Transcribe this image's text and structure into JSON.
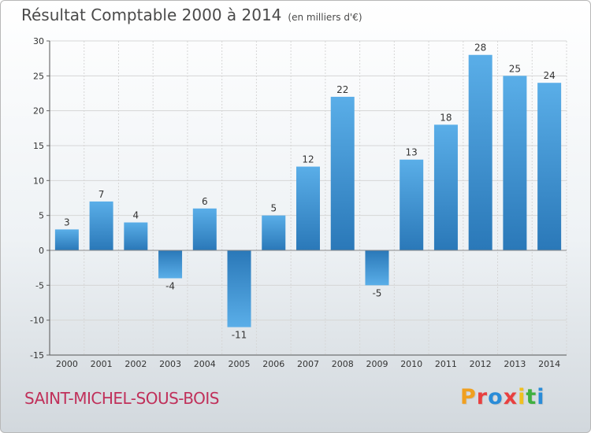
{
  "header": {
    "title": "Résultat Comptable 2000 à 2014",
    "subtitle": "(en milliers d'€)"
  },
  "footer": {
    "commune": "SAINT-MICHEL-SOUS-BOIS"
  },
  "logo": {
    "letters": [
      "P",
      "r",
      "o",
      "x",
      "i",
      "t",
      "i"
    ],
    "colors": [
      "#f0a020",
      "#e84040",
      "#2a8cd8",
      "#e84040",
      "#f0c020",
      "#40b040",
      "#2a8cd8"
    ]
  },
  "chart_data": {
    "type": "bar",
    "title": "Résultat Comptable 2000 à 2014",
    "subtitle": "(en milliers d'€)",
    "categories": [
      "2000",
      "2001",
      "2002",
      "2003",
      "2004",
      "2005",
      "2006",
      "2007",
      "2008",
      "2009",
      "2010",
      "2011",
      "2012",
      "2013",
      "2014"
    ],
    "values": [
      3,
      7,
      4,
      -4,
      6,
      -11,
      5,
      12,
      22,
      -5,
      13,
      18,
      28,
      25,
      24
    ],
    "ylim": [
      -15,
      30
    ],
    "yticks": [
      -15,
      -10,
      -5,
      0,
      5,
      10,
      15,
      20,
      25,
      30
    ],
    "grid": true,
    "legend": "none",
    "bar_color_top": "#5aaee8",
    "bar_color_bottom": "#2a78b8"
  }
}
